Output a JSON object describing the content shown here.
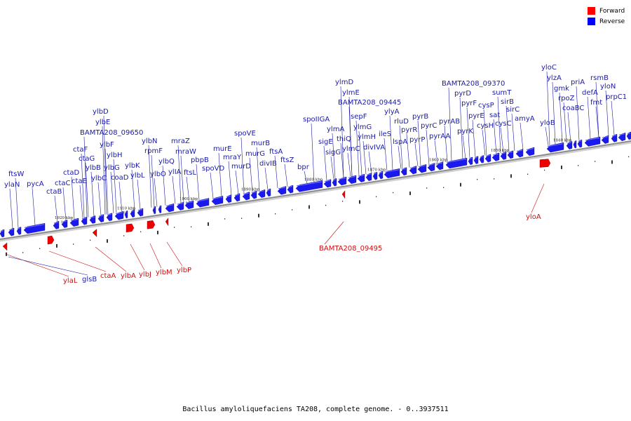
{
  "legend": [
    {
      "label": "Forward",
      "color": "#ff0000"
    },
    {
      "label": "Reverse",
      "color": "#0000ff"
    }
  ],
  "caption": "Bacillus amyloliquefaciens TA208, complete genome. - 0..3937511",
  "colors": {
    "forward": "#ee0000",
    "reverse": "#1a1aee",
    "forward_label": "#cc1111",
    "reverse_label": "#1a1aa8",
    "backbone": "#8c8c8c"
  },
  "ticks": [
    "1920 kbp",
    "1910 kbp",
    "1900 kbp",
    "1890 kbp",
    "1880 kbp",
    "1870 kbp",
    "1860 kbp",
    "1850 kbp",
    "1840 kbp"
  ],
  "reverse_genes": [
    "ylaN",
    "ftsW",
    "pycA",
    "ctaB",
    "ctaC",
    "ctaD",
    "ctaE",
    "ctaF",
    "ctaG",
    "ylbB",
    "ylbC",
    "ylbF",
    "ylbD",
    "ylbE",
    "BAMTA208_09650",
    "ylbH",
    "ylbG",
    "coaD",
    "ylbK",
    "ylbL",
    "rpmF",
    "ylbN",
    "ylbO",
    "ylbQ",
    "ylIA",
    "mraZ",
    "mraW",
    "ftsL",
    "pbpB",
    "spoVD",
    "murE",
    "mraY",
    "murD",
    "spoVE",
    "murG",
    "murB",
    "divIB",
    "ftsA",
    "ftsZ",
    "bpr",
    "spoIIGA",
    "sigE",
    "sigG",
    "ylmA",
    "thiQ",
    "ylmC",
    "ylmD",
    "ylmE",
    "BAMTA208_09445",
    "sepF",
    "ylmG",
    "ylmH",
    "divIVA",
    "ileS",
    "ylyA",
    "lspA",
    "rluD",
    "pyrR",
    "pyrP",
    "pyrB",
    "pyrC",
    "pyrAA",
    "pyrAB",
    "pyrK",
    "pyrD",
    "pyrF",
    "pyrE",
    "BAMTA208_09370",
    "cysP",
    "cysH",
    "sat",
    "sumT",
    "sirB",
    "cysC",
    "sirC",
    "amyA",
    "yloB",
    "yloC",
    "ylzA",
    "gmk",
    "rpoZ",
    "coaBC",
    "priA",
    "defA",
    "rsmB",
    "fmt",
    "yloN",
    "prpC1"
  ],
  "forward_genes": [
    "ylaL",
    "glsB",
    "ctaA",
    "ylbA",
    "ylbJ",
    "ylbM",
    "ylbP",
    "BAMTA208_09495",
    "yloA"
  ]
}
